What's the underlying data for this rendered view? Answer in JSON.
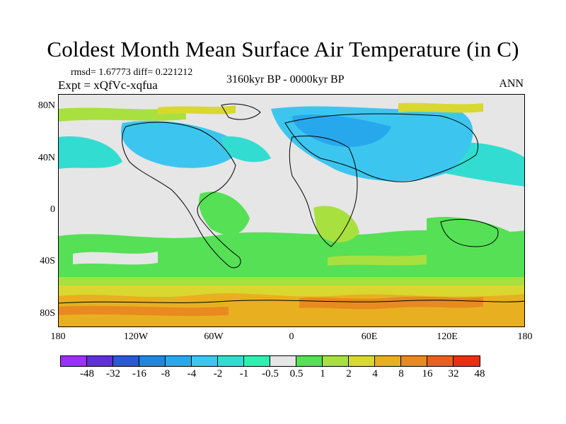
{
  "title": "Coldest Month Mean Surface Air Temperature (in C)",
  "stats": "rmsd= 1.67773 diff= 0.221212",
  "experiment": "Expt = xQfVc-xqfua",
  "period": "3160kyr BP - 0000kyr BP",
  "season": "ANN",
  "y_axis": {
    "labels": [
      "80N",
      "40N",
      "0",
      "40S",
      "80S"
    ],
    "lat_values": [
      80,
      40,
      0,
      -40,
      -80
    ]
  },
  "x_axis": {
    "labels": [
      "180",
      "120W",
      "60W",
      "0",
      "60E",
      "120E",
      "180"
    ],
    "lon_values": [
      -180,
      -120,
      -60,
      0,
      60,
      120,
      180
    ]
  },
  "colorbar": {
    "colors": [
      "#9b30ff",
      "#5f2fd8",
      "#2e57d6",
      "#1f86e0",
      "#28a8ec",
      "#3cc6ef",
      "#33dcd0",
      "#2ef0b0",
      "#e6e6e6",
      "#55e055",
      "#a8e040",
      "#d8d830",
      "#e8b020",
      "#e88a20",
      "#e86020",
      "#e83010"
    ],
    "labels": [
      "-48",
      "-32",
      "-16",
      "-8",
      "-4",
      "-2",
      "-1",
      "-0.5",
      "0.5",
      "1",
      "2",
      "4",
      "8",
      "16",
      "32",
      "48"
    ]
  },
  "chart_data": {
    "type": "heatmap",
    "title": "Coldest Month Mean Surface Air Temperature (in C)",
    "projection": "cylindrical equidistant",
    "lon_range": [
      -180,
      180
    ],
    "lat_range": [
      -90,
      90
    ],
    "units": "C",
    "levels": [
      -48,
      -32,
      -16,
      -8,
      -4,
      -2,
      -1,
      -0.5,
      0.5,
      1,
      2,
      4,
      8,
      16,
      32,
      48
    ],
    "regions": [
      {
        "area": "Southern Ocean / Antarctic margin",
        "value_range": [
          2,
          16
        ]
      },
      {
        "area": "Southern mid-latitudes",
        "value_range": [
          1,
          4
        ]
      },
      {
        "area": "Northern mid-latitude Pacific",
        "value_range": [
          -2,
          -0.5
        ]
      },
      {
        "area": "Northern mid-latitude Atlantic",
        "value_range": [
          -2,
          -0.5
        ]
      },
      {
        "area": "Northern Eurasia",
        "value_range": [
          -4,
          -0.5
        ]
      },
      {
        "area": "Arctic margins",
        "value_range": [
          1,
          4
        ]
      },
      {
        "area": "Tropics",
        "value_range": [
          -0.5,
          0.5
        ]
      }
    ]
  }
}
